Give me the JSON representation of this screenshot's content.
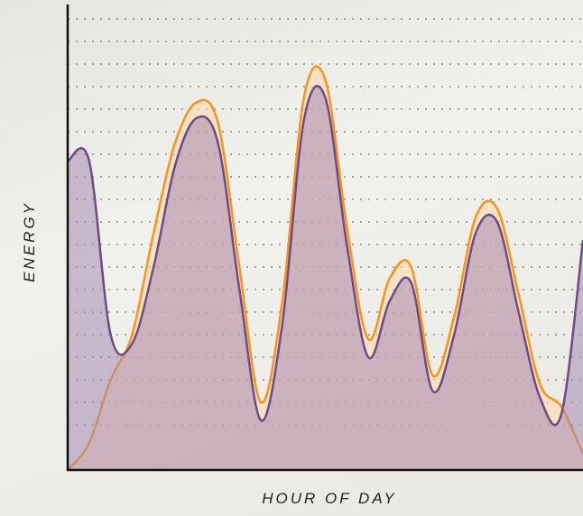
{
  "chart_data": {
    "type": "area",
    "x_label": "HOUR OF DAY",
    "y_label": "ENERGY",
    "x": [
      0,
      1,
      2,
      3,
      4,
      5,
      6,
      7,
      8,
      9,
      10,
      11,
      12,
      13,
      14,
      15,
      16,
      17,
      18,
      19,
      20,
      21,
      22,
      23,
      24
    ],
    "xlim": [
      0,
      24
    ],
    "ylim": [
      0,
      20
    ],
    "yticks": [
      2,
      3,
      4,
      5,
      6,
      7,
      8,
      9,
      10,
      11,
      12,
      13,
      14,
      15,
      16,
      17,
      18,
      19,
      20
    ],
    "grid": true,
    "series": [
      {
        "color": "#f7941d",
        "fill": "#ffd9ad",
        "values": [
          0,
          1.2,
          4.0,
          6.0,
          10.5,
          14.5,
          16.3,
          15.4,
          9.0,
          3.0,
          7.5,
          16.5,
          17.3,
          10.8,
          5.8,
          8.5,
          9.0,
          4.2,
          6.8,
          11.2,
          11.6,
          7.8,
          3.8,
          2.8,
          0.7
        ]
      },
      {
        "color": "#6f4a86",
        "fill": "#a88bb3",
        "values": [
          13.7,
          13.7,
          6.0,
          5.6,
          9.0,
          13.5,
          15.6,
          14.5,
          8.0,
          2.2,
          6.5,
          15.5,
          16.5,
          10.0,
          5.0,
          7.5,
          8.3,
          3.5,
          6.0,
          10.5,
          11.0,
          7.0,
          3.2,
          2.5,
          10.2
        ]
      }
    ]
  }
}
